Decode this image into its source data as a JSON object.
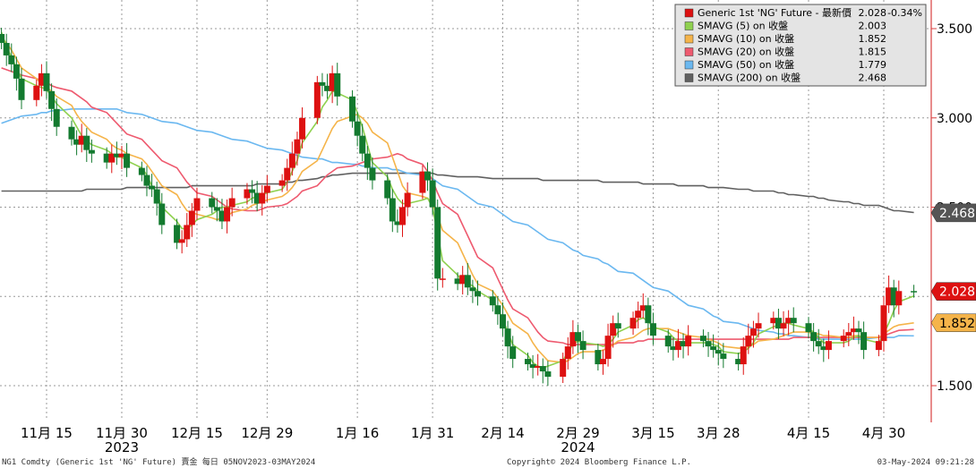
{
  "chart_data": {
    "type": "line",
    "subtype": "candlestick-with-moving-averages",
    "title": "",
    "x_ticks": [
      {
        "label": "11月 15",
        "date": "2023-11-15"
      },
      {
        "label": "11月 30",
        "date": "2023-11-30"
      },
      {
        "label": "12月 15",
        "date": "2023-12-15"
      },
      {
        "label": "12月 29",
        "date": "2023-12-29"
      },
      {
        "label": "1月 16",
        "date": "2024-01-16"
      },
      {
        "label": "1月 31",
        "date": "2024-01-31"
      },
      {
        "label": "2月 14",
        "date": "2024-02-14"
      },
      {
        "label": "2月 29",
        "date": "2024-02-29"
      },
      {
        "label": "3月 15",
        "date": "2024-03-15"
      },
      {
        "label": "3月 28",
        "date": "2024-03-28"
      },
      {
        "label": "4月 15",
        "date": "2024-04-15"
      },
      {
        "label": "4月 30",
        "date": "2024-04-30"
      }
    ],
    "year_labels": [
      {
        "label": "2023",
        "date": "2023-11-30"
      },
      {
        "label": "2024",
        "date": "2024-02-29"
      }
    ],
    "y_ticks": [
      "3.500",
      "3.000",
      "2.500",
      "1.500"
    ],
    "ylim": [
      1.3,
      3.55
    ],
    "grid": true,
    "legend_position": "top-right",
    "legend": [
      {
        "name": "Generic 1st 'NG' Future - 最新價",
        "value": "2.028",
        "change": "-0.34%",
        "color": "#dd1111"
      },
      {
        "name": "SMAVG (5)  on 收盤",
        "value": "2.003",
        "color": "#8fd14f"
      },
      {
        "name": "SMAVG (10)  on 收盤",
        "value": "1.852",
        "color": "#f5b44a"
      },
      {
        "name": "SMAVG (20)  on 收盤",
        "value": "1.815",
        "color": "#ee5a6f"
      },
      {
        "name": "SMAVG (50)  on 收盤",
        "value": "1.779",
        "color": "#6bb8f0"
      },
      {
        "name": "SMAVG (200)  on 收盤",
        "value": "2.468",
        "color": "#606060"
      }
    ],
    "value_tags": [
      {
        "text": "2.468",
        "value": 2.468,
        "bg": "#555555",
        "fg": "#ffffff"
      },
      {
        "text": "2.028",
        "value": 2.028,
        "bg": "#dd1111",
        "fg": "#ffffff"
      },
      {
        "text": "1.852",
        "value": 1.852,
        "bg": "#f5b44a",
        "fg": "#000000"
      }
    ],
    "ohlc_start_date": "2023-11-06",
    "closes": [
      3.42,
      3.35,
      3.3,
      3.22,
      3.1,
      3.18,
      3.25,
      3.15,
      3.05,
      2.95,
      2.88,
      2.85,
      2.9,
      2.82,
      2.8,
      2.75,
      2.8,
      2.78,
      2.8,
      2.72,
      2.68,
      2.62,
      2.6,
      2.52,
      2.4,
      2.3,
      2.32,
      2.4,
      2.48,
      2.55,
      2.5,
      2.48,
      2.42,
      2.5,
      2.55,
      2.6,
      2.58,
      2.52,
      2.58,
      2.62,
      2.65,
      2.72,
      2.8,
      2.88,
      3.0,
      3.2,
      3.18,
      3.15,
      3.25,
      3.12,
      2.98,
      2.9,
      2.8,
      2.72,
      2.65,
      2.55,
      2.42,
      2.4,
      2.5,
      2.58,
      2.7,
      2.65,
      2.5,
      2.1,
      2.1,
      2.07,
      2.12,
      2.05,
      2.03,
      2.0,
      1.95,
      1.9,
      1.82,
      1.72,
      1.65,
      1.62,
      1.6,
      1.61,
      1.58,
      1.55,
      1.65,
      1.72,
      1.8,
      1.75,
      1.7,
      1.62,
      1.65,
      1.78,
      1.85,
      1.82,
      1.88,
      1.92,
      1.95,
      1.85,
      1.78,
      1.72,
      1.7,
      1.75,
      1.72,
      1.78,
      1.75,
      1.72,
      1.7,
      1.68,
      1.65,
      1.62,
      1.72,
      1.78,
      1.82,
      1.85,
      1.88,
      1.82,
      1.85,
      1.88,
      1.85,
      1.8,
      1.75,
      1.72,
      1.7,
      1.75,
      1.78,
      1.8,
      1.82,
      1.8,
      1.7,
      1.75,
      1.95,
      2.05,
      1.95,
      2.03,
      2.028
    ],
    "sma5": [
      3.48,
      3.4,
      3.34,
      3.28,
      3.22,
      3.18,
      3.17,
      3.16,
      3.12,
      3.08,
      3.0,
      2.95,
      2.9,
      2.87,
      2.85,
      2.82,
      2.8,
      2.78,
      2.78,
      2.76,
      2.72,
      2.68,
      2.62,
      2.58,
      2.5,
      2.42,
      2.38,
      2.38,
      2.4,
      2.43,
      2.46,
      2.48,
      2.5,
      2.5,
      2.51,
      2.53,
      2.55,
      2.56,
      2.57,
      2.58,
      2.6,
      2.64,
      2.7,
      2.76,
      2.86,
      2.98,
      3.06,
      3.1,
      3.15,
      3.14,
      3.1,
      3.03,
      2.95,
      2.85,
      2.75,
      2.67,
      2.6,
      2.55,
      2.52,
      2.52,
      2.54,
      2.55,
      2.5,
      2.35,
      2.2,
      2.12,
      2.08,
      2.07,
      2.06,
      2.03,
      1.98,
      1.93,
      1.87,
      1.8,
      1.73,
      1.67,
      1.63,
      1.61,
      1.6,
      1.61,
      1.64,
      1.69,
      1.73,
      1.75,
      1.74,
      1.73,
      1.72,
      1.73,
      1.76,
      1.8,
      1.84,
      1.87,
      1.88,
      1.86,
      1.83,
      1.8,
      1.77,
      1.75,
      1.73,
      1.74,
      1.74,
      1.74,
      1.73,
      1.72,
      1.69,
      1.68,
      1.69,
      1.71,
      1.74,
      1.79,
      1.83,
      1.84,
      1.85,
      1.85,
      1.84,
      1.82,
      1.8,
      1.77,
      1.74,
      1.74,
      1.74,
      1.75,
      1.77,
      1.78,
      1.76,
      1.74,
      1.79,
      1.85,
      1.92,
      1.97,
      2.003
    ],
    "sma10": [
      3.45,
      3.42,
      3.38,
      3.33,
      3.28,
      3.22,
      3.19,
      3.17,
      3.15,
      3.12,
      3.07,
      3.02,
      2.98,
      2.95,
      2.92,
      2.88,
      2.85,
      2.83,
      2.82,
      2.8,
      2.77,
      2.74,
      2.7,
      2.66,
      2.62,
      2.57,
      2.52,
      2.48,
      2.47,
      2.46,
      2.44,
      2.43,
      2.44,
      2.45,
      2.47,
      2.49,
      2.51,
      2.52,
      2.53,
      2.54,
      2.56,
      2.58,
      2.61,
      2.65,
      2.7,
      2.76,
      2.82,
      2.88,
      2.94,
      2.98,
      3.01,
      3.02,
      3.0,
      2.97,
      2.92,
      2.86,
      2.78,
      2.7,
      2.62,
      2.58,
      2.56,
      2.55,
      2.52,
      2.45,
      2.37,
      2.3,
      2.24,
      2.18,
      2.12,
      2.07,
      2.03,
      1.99,
      1.95,
      1.9,
      1.85,
      1.79,
      1.74,
      1.7,
      1.67,
      1.64,
      1.63,
      1.64,
      1.66,
      1.68,
      1.69,
      1.69,
      1.7,
      1.71,
      1.73,
      1.75,
      1.77,
      1.79,
      1.81,
      1.82,
      1.82,
      1.82,
      1.81,
      1.8,
      1.79,
      1.78,
      1.77,
      1.76,
      1.75,
      1.74,
      1.72,
      1.71,
      1.71,
      1.72,
      1.73,
      1.75,
      1.76,
      1.77,
      1.78,
      1.79,
      1.8,
      1.8,
      1.79,
      1.79,
      1.78,
      1.78,
      1.77,
      1.77,
      1.78,
      1.78,
      1.77,
      1.77,
      1.79,
      1.81,
      1.83,
      1.84,
      1.852
    ],
    "sma20": [
      3.28,
      3.27,
      3.26,
      3.25,
      3.24,
      3.22,
      3.21,
      3.2,
      3.18,
      3.17,
      3.15,
      3.13,
      3.11,
      3.09,
      3.06,
      3.03,
      3.0,
      2.97,
      2.94,
      2.91,
      2.88,
      2.85,
      2.82,
      2.79,
      2.76,
      2.72,
      2.68,
      2.64,
      2.61,
      2.58,
      2.56,
      2.54,
      2.52,
      2.5,
      2.49,
      2.48,
      2.48,
      2.48,
      2.49,
      2.5,
      2.51,
      2.52,
      2.54,
      2.56,
      2.59,
      2.62,
      2.65,
      2.68,
      2.7,
      2.72,
      2.73,
      2.74,
      2.75,
      2.76,
      2.77,
      2.78,
      2.79,
      2.8,
      2.79,
      2.77,
      2.74,
      2.7,
      2.65,
      2.58,
      2.52,
      2.46,
      2.4,
      2.34,
      2.28,
      2.22,
      2.16,
      2.1,
      2.04,
      1.98,
      1.93,
      1.88,
      1.84,
      1.8,
      1.77,
      1.75,
      1.74,
      1.73,
      1.73,
      1.73,
      1.73,
      1.73,
      1.73,
      1.73,
      1.73,
      1.74,
      1.74,
      1.75,
      1.75,
      1.76,
      1.76,
      1.76,
      1.76,
      1.76,
      1.76,
      1.76,
      1.76,
      1.76,
      1.76,
      1.76,
      1.76,
      1.76,
      1.76,
      1.76,
      1.76,
      1.76,
      1.76,
      1.76,
      1.76,
      1.76,
      1.77,
      1.77,
      1.77,
      1.77,
      1.77,
      1.77,
      1.77,
      1.77,
      1.77,
      1.77,
      1.77,
      1.77,
      1.78,
      1.79,
      1.8,
      1.81,
      1.815
    ],
    "sma50": [
      2.97,
      2.98,
      2.99,
      3.0,
      3.01,
      3.02,
      3.03,
      3.03,
      3.04,
      3.04,
      3.05,
      3.05,
      3.05,
      3.05,
      3.05,
      3.05,
      3.05,
      3.05,
      3.04,
      3.03,
      3.02,
      3.01,
      3.0,
      2.99,
      2.98,
      2.97,
      2.96,
      2.95,
      2.94,
      2.93,
      2.92,
      2.91,
      2.9,
      2.89,
      2.88,
      2.87,
      2.86,
      2.85,
      2.84,
      2.83,
      2.82,
      2.81,
      2.8,
      2.79,
      2.78,
      2.77,
      2.77,
      2.76,
      2.75,
      2.75,
      2.74,
      2.74,
      2.73,
      2.73,
      2.72,
      2.72,
      2.71,
      2.71,
      2.7,
      2.69,
      2.68,
      2.67,
      2.66,
      2.64,
      2.62,
      2.6,
      2.58,
      2.56,
      2.54,
      2.52,
      2.5,
      2.48,
      2.46,
      2.44,
      2.42,
      2.4,
      2.38,
      2.36,
      2.34,
      2.32,
      2.3,
      2.28,
      2.26,
      2.25,
      2.23,
      2.21,
      2.19,
      2.18,
      2.16,
      2.14,
      2.13,
      2.11,
      2.09,
      2.07,
      2.05,
      2.03,
      2.01,
      1.99,
      1.97,
      1.95,
      1.93,
      1.91,
      1.89,
      1.88,
      1.86,
      1.85,
      1.84,
      1.83,
      1.82,
      1.81,
      1.8,
      1.79,
      1.79,
      1.78,
      1.78,
      1.77,
      1.77,
      1.76,
      1.76,
      1.76,
      1.76,
      1.76,
      1.76,
      1.76,
      1.76,
      1.77,
      1.77,
      1.77,
      1.77,
      1.78,
      1.779
    ],
    "sma200": [
      2.59,
      2.59,
      2.59,
      2.59,
      2.59,
      2.59,
      2.59,
      2.59,
      2.59,
      2.59,
      2.59,
      2.59,
      2.59,
      2.6,
      2.6,
      2.6,
      2.6,
      2.6,
      2.6,
      2.61,
      2.61,
      2.61,
      2.61,
      2.61,
      2.61,
      2.61,
      2.61,
      2.61,
      2.62,
      2.62,
      2.62,
      2.62,
      2.62,
      2.62,
      2.62,
      2.62,
      2.62,
      2.63,
      2.63,
      2.63,
      2.63,
      2.64,
      2.64,
      2.65,
      2.65,
      2.66,
      2.67,
      2.67,
      2.68,
      2.68,
      2.69,
      2.69,
      2.69,
      2.69,
      2.69,
      2.69,
      2.69,
      2.69,
      2.69,
      2.69,
      2.69,
      2.69,
      2.69,
      2.68,
      2.68,
      2.67,
      2.67,
      2.67,
      2.67,
      2.67,
      2.66,
      2.66,
      2.66,
      2.66,
      2.66,
      2.66,
      2.66,
      2.66,
      2.65,
      2.65,
      2.65,
      2.65,
      2.65,
      2.65,
      2.65,
      2.65,
      2.64,
      2.64,
      2.64,
      2.64,
      2.64,
      2.64,
      2.63,
      2.63,
      2.63,
      2.63,
      2.63,
      2.62,
      2.62,
      2.62,
      2.62,
      2.61,
      2.61,
      2.61,
      2.61,
      2.6,
      2.6,
      2.6,
      2.59,
      2.59,
      2.59,
      2.58,
      2.58,
      2.57,
      2.57,
      2.56,
      2.56,
      2.55,
      2.55,
      2.54,
      2.53,
      2.53,
      2.52,
      2.52,
      2.51,
      2.51,
      2.5,
      2.49,
      2.48,
      2.48,
      2.47
    ]
  },
  "footer": {
    "left": "NG1 Comdty (Generic 1st 'NG' Future) 賣金  每日 05NOV2023-03MAY2024",
    "center": "Copyright© 2024 Bloomberg Finance L.P.",
    "right": "03-May-2024 09:21:28"
  }
}
